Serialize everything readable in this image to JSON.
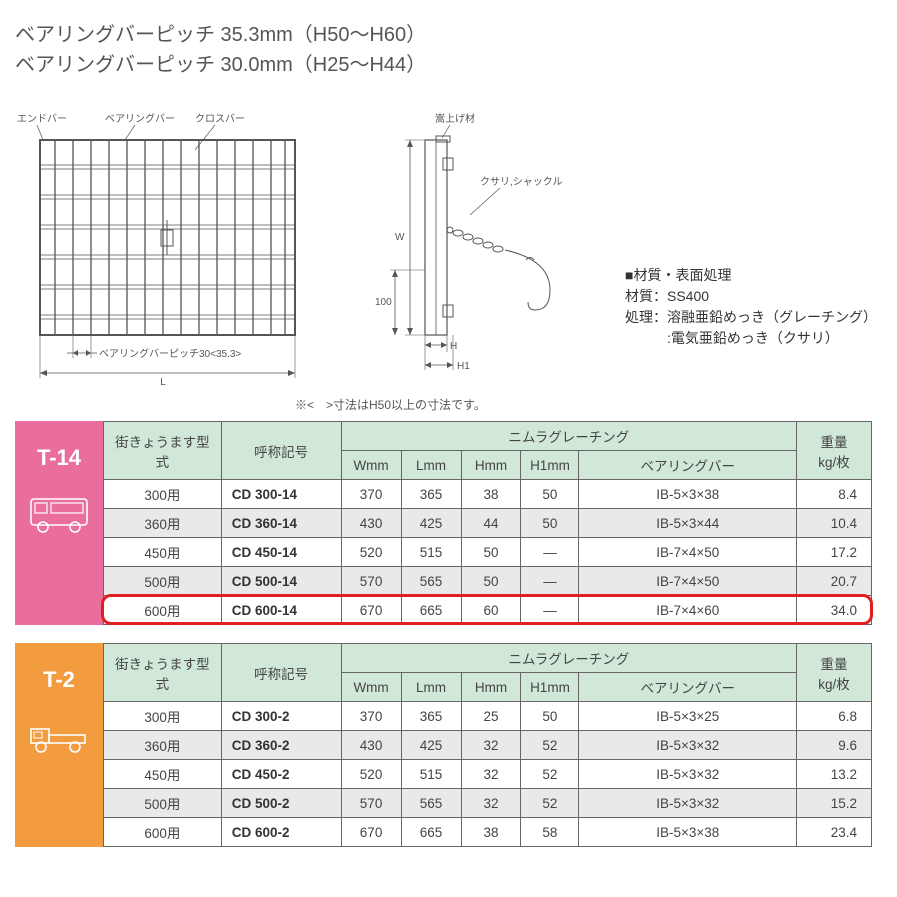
{
  "pitch": {
    "line1": "ベアリングバーピッチ 35.3mm（H50～H60）",
    "line2": "ベアリングバーピッチ 30.0mm（H25～H44）"
  },
  "topview": {
    "label_end": "エンドバー",
    "label_bearing": "ベアリングバー",
    "label_cross": "クロスバー",
    "label_pitch": "ベアリングバーピッチ30<35.3>",
    "label_L": "L"
  },
  "sideview": {
    "label_lift": "嵩上げ材",
    "label_chain": "クサリ,シャックル",
    "label_W": "W",
    "label_100": "100",
    "label_H": "H",
    "label_H1": "H1"
  },
  "material": {
    "heading": "■材質・表面処理",
    "mat": "材質：SS400",
    "proc1": "処理：溶融亜鉛めっき（グレーチング）",
    "proc2": "　　　:電気亜鉛めっき（クサリ）"
  },
  "note": "※<　>寸法はH50以上の寸法です。",
  "headers": {
    "type": "街きょうます型式",
    "model": "呼称記号",
    "grating": "ニムラグレーチング",
    "w": "Wmm",
    "l": "Lmm",
    "h": "Hmm",
    "h1": "H1mm",
    "bar": "ベアリングバー",
    "weight": "重量\nkg/枚"
  },
  "t14": {
    "badge": "T-14",
    "highlight_row": 4,
    "rows": [
      {
        "type": "300用",
        "model": "CD 300-14",
        "w": "370",
        "l": "365",
        "h": "38",
        "h1": "50",
        "bar": "IB-5×3×38",
        "wt": "8.4"
      },
      {
        "type": "360用",
        "model": "CD 360-14",
        "w": "430",
        "l": "425",
        "h": "44",
        "h1": "50",
        "bar": "IB-5×3×44",
        "wt": "10.4"
      },
      {
        "type": "450用",
        "model": "CD 450-14",
        "w": "520",
        "l": "515",
        "h": "50",
        "h1": "—",
        "bar": "IB-7×4×50",
        "wt": "17.2"
      },
      {
        "type": "500用",
        "model": "CD 500-14",
        "w": "570",
        "l": "565",
        "h": "50",
        "h1": "—",
        "bar": "IB-7×4×50",
        "wt": "20.7"
      },
      {
        "type": "600用",
        "model": "CD 600-14",
        "w": "670",
        "l": "665",
        "h": "60",
        "h1": "—",
        "bar": "IB-7×4×60",
        "wt": "34.0"
      }
    ]
  },
  "t2": {
    "badge": "T-2",
    "rows": [
      {
        "type": "300用",
        "model": "CD 300-2",
        "w": "370",
        "l": "365",
        "h": "25",
        "h1": "50",
        "bar": "IB-5×3×25",
        "wt": "6.8"
      },
      {
        "type": "360用",
        "model": "CD 360-2",
        "w": "430",
        "l": "425",
        "h": "32",
        "h1": "52",
        "bar": "IB-5×3×32",
        "wt": "9.6"
      },
      {
        "type": "450用",
        "model": "CD 450-2",
        "w": "520",
        "l": "515",
        "h": "32",
        "h1": "52",
        "bar": "IB-5×3×32",
        "wt": "13.2"
      },
      {
        "type": "500用",
        "model": "CD 500-2",
        "w": "570",
        "l": "565",
        "h": "32",
        "h1": "52",
        "bar": "IB-5×3×32",
        "wt": "15.2"
      },
      {
        "type": "600用",
        "model": "CD 600-2",
        "w": "670",
        "l": "665",
        "h": "38",
        "h1": "58",
        "bar": "IB-5×3×38",
        "wt": "23.4"
      }
    ]
  },
  "colors": {
    "t14": "#e96e9d",
    "t2": "#f29b3f",
    "header_bg": "#d1e7d8",
    "alt_bg": "#e9e9e9",
    "highlight": "#e02020"
  }
}
